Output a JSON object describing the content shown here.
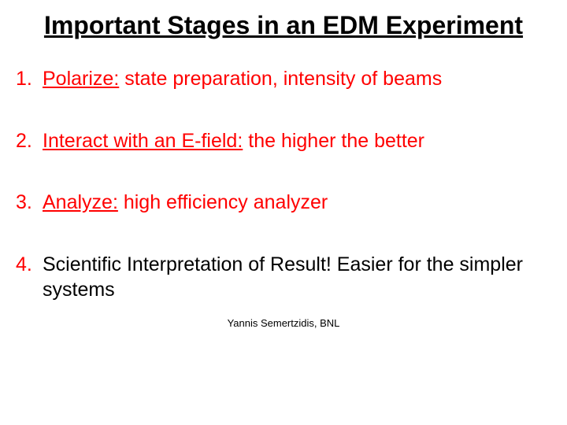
{
  "title": "Important Stages in an EDM Experiment",
  "items": [
    {
      "num": "1.",
      "key": "Polarize:",
      "desc": " state preparation, intensity of beams",
      "plain": ""
    },
    {
      "num": "2.",
      "key": "Interact with an E-field:",
      "desc": " the higher the better",
      "plain": ""
    },
    {
      "num": "3.",
      "key": "Analyze:",
      "desc": " high efficiency analyzer",
      "plain": ""
    },
    {
      "num": "4.",
      "key": "",
      "desc": "",
      "plain": "Scientific Interpretation of Result!  Easier for the simpler systems"
    }
  ],
  "footer": "Yannis Semertzidis, BNL",
  "colors": {
    "accent": "#ff0000",
    "text": "#000000",
    "background": "#ffffff"
  },
  "fonts": {
    "title_size": 32,
    "body_size": 25,
    "footer_size": 13
  }
}
